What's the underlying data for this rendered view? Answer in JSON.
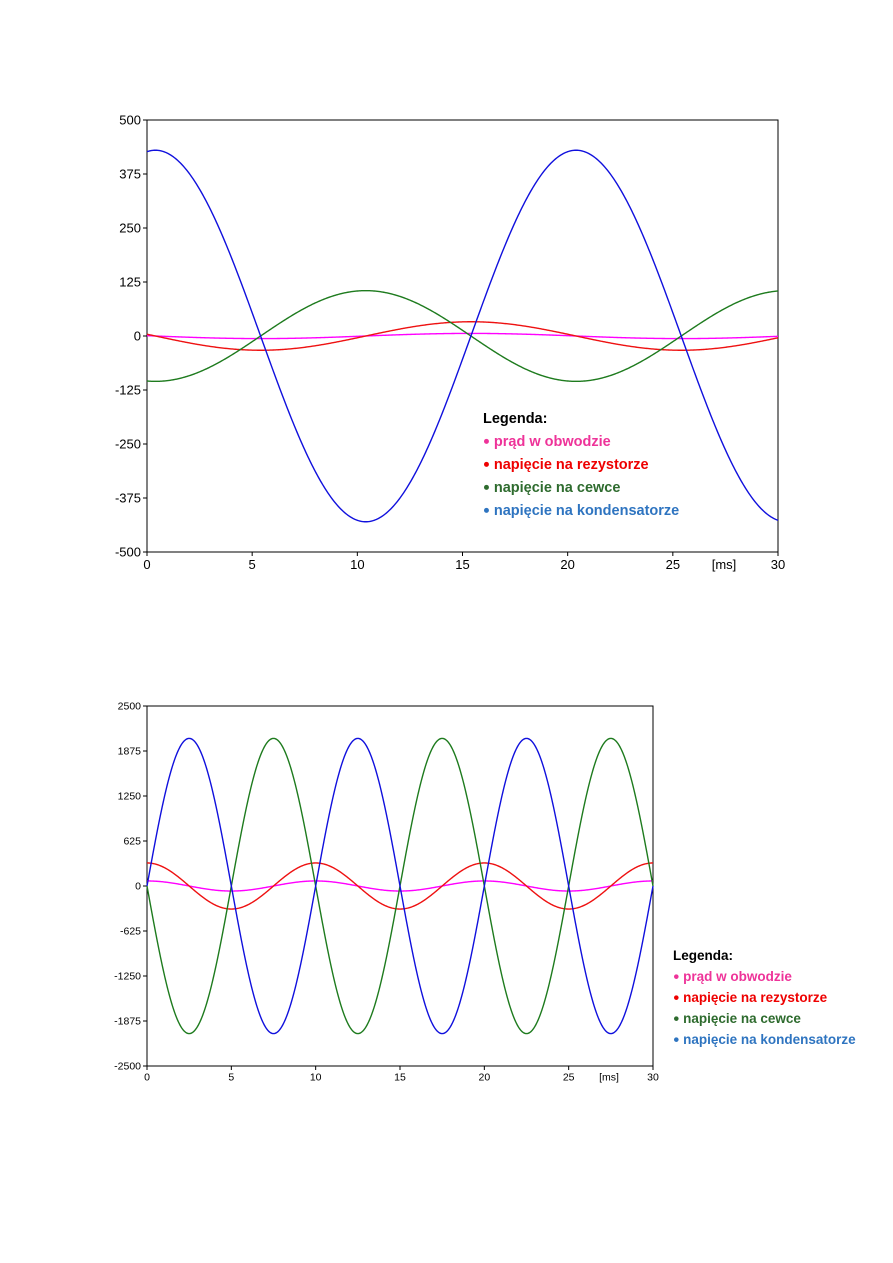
{
  "chart_data": [
    {
      "type": "line",
      "title": "",
      "xlabel": "[ms]",
      "ylabel": "",
      "xlim": [
        0,
        30
      ],
      "ylim": [
        -500,
        500
      ],
      "xticks": [
        0,
        5,
        10,
        15,
        20,
        25,
        30
      ],
      "xtick_labels": [
        "0",
        "5",
        "10",
        "15",
        "20",
        "25",
        "30"
      ],
      "yticks": [
        500,
        375,
        250,
        125,
        0,
        -125,
        -250,
        -375,
        -500
      ],
      "ytick_labels": [
        "500",
        "375",
        "250",
        "125",
        "0",
        "-125",
        "-250",
        "-375",
        "-500"
      ],
      "series": [
        {
          "name": "prąd w obwodzie",
          "color": "#ff00ff",
          "amplitude": 6,
          "period_ms": 20,
          "peak_ms": 15.4
        },
        {
          "name": "napięcie na rezystorze",
          "color": "#ee1111",
          "amplitude": 33,
          "period_ms": 20,
          "peak_ms": 15.4
        },
        {
          "name": "napięcie na cewce",
          "color": "#1e7b1e",
          "amplitude": 105,
          "period_ms": 20,
          "peak_ms": 10.4
        },
        {
          "name": "napięcie na kondensatorze",
          "color": "#1010dd",
          "amplitude": 430,
          "period_ms": 20,
          "peak_ms": 0.4
        }
      ],
      "legend": {
        "title": "Legenda:",
        "items": [
          {
            "label": "prąd w obwodzie",
            "color": "#ee3399"
          },
          {
            "label": "napięcie na rezystorze",
            "color": "#ee0000"
          },
          {
            "label": "napięcie na cewce",
            "color": "#2e6b2e"
          },
          {
            "label": "napięcie na kondensatorze",
            "color": "#2e74c0"
          }
        ]
      }
    },
    {
      "type": "line",
      "title": "",
      "xlabel": "[ms]",
      "ylabel": "",
      "xlim": [
        0,
        30
      ],
      "ylim": [
        -2500,
        2500
      ],
      "xticks": [
        0,
        5,
        10,
        15,
        20,
        25,
        30
      ],
      "xtick_labels": [
        "0",
        "5",
        "10",
        "15",
        "20",
        "25",
        "30"
      ],
      "yticks": [
        2500,
        1875,
        1250,
        625,
        0,
        -625,
        -1250,
        -1875,
        -2500
      ],
      "ytick_labels": [
        "2500",
        "1875",
        "1250",
        "625",
        "0",
        "-625",
        "-1250",
        "-1875",
        "-2500"
      ],
      "series": [
        {
          "name": "prąd w obwodzie",
          "color": "#ff00ff",
          "amplitude": 70,
          "period_ms": 10,
          "peak_ms": 0
        },
        {
          "name": "napięcie na rezystorze",
          "color": "#ee1111",
          "amplitude": 320,
          "period_ms": 10,
          "peak_ms": 0
        },
        {
          "name": "napięcie na cewce",
          "color": "#1e7b1e",
          "amplitude": 2050,
          "period_ms": 10,
          "peak_ms": 7.5
        },
        {
          "name": "napięcie na kondensatorze",
          "color": "#1010dd",
          "amplitude": 2050,
          "period_ms": 10,
          "peak_ms": 2.5
        }
      ],
      "legend": {
        "title": "Legenda:",
        "items": [
          {
            "label": "prąd w obwodzie",
            "color": "#ee3399"
          },
          {
            "label": "napięcie na rezystorze",
            "color": "#ee0000"
          },
          {
            "label": "napięcie na cewce",
            "color": "#2e6b2e"
          },
          {
            "label": "napięcie na kondensatorze",
            "color": "#2e74c0"
          }
        ]
      }
    }
  ]
}
